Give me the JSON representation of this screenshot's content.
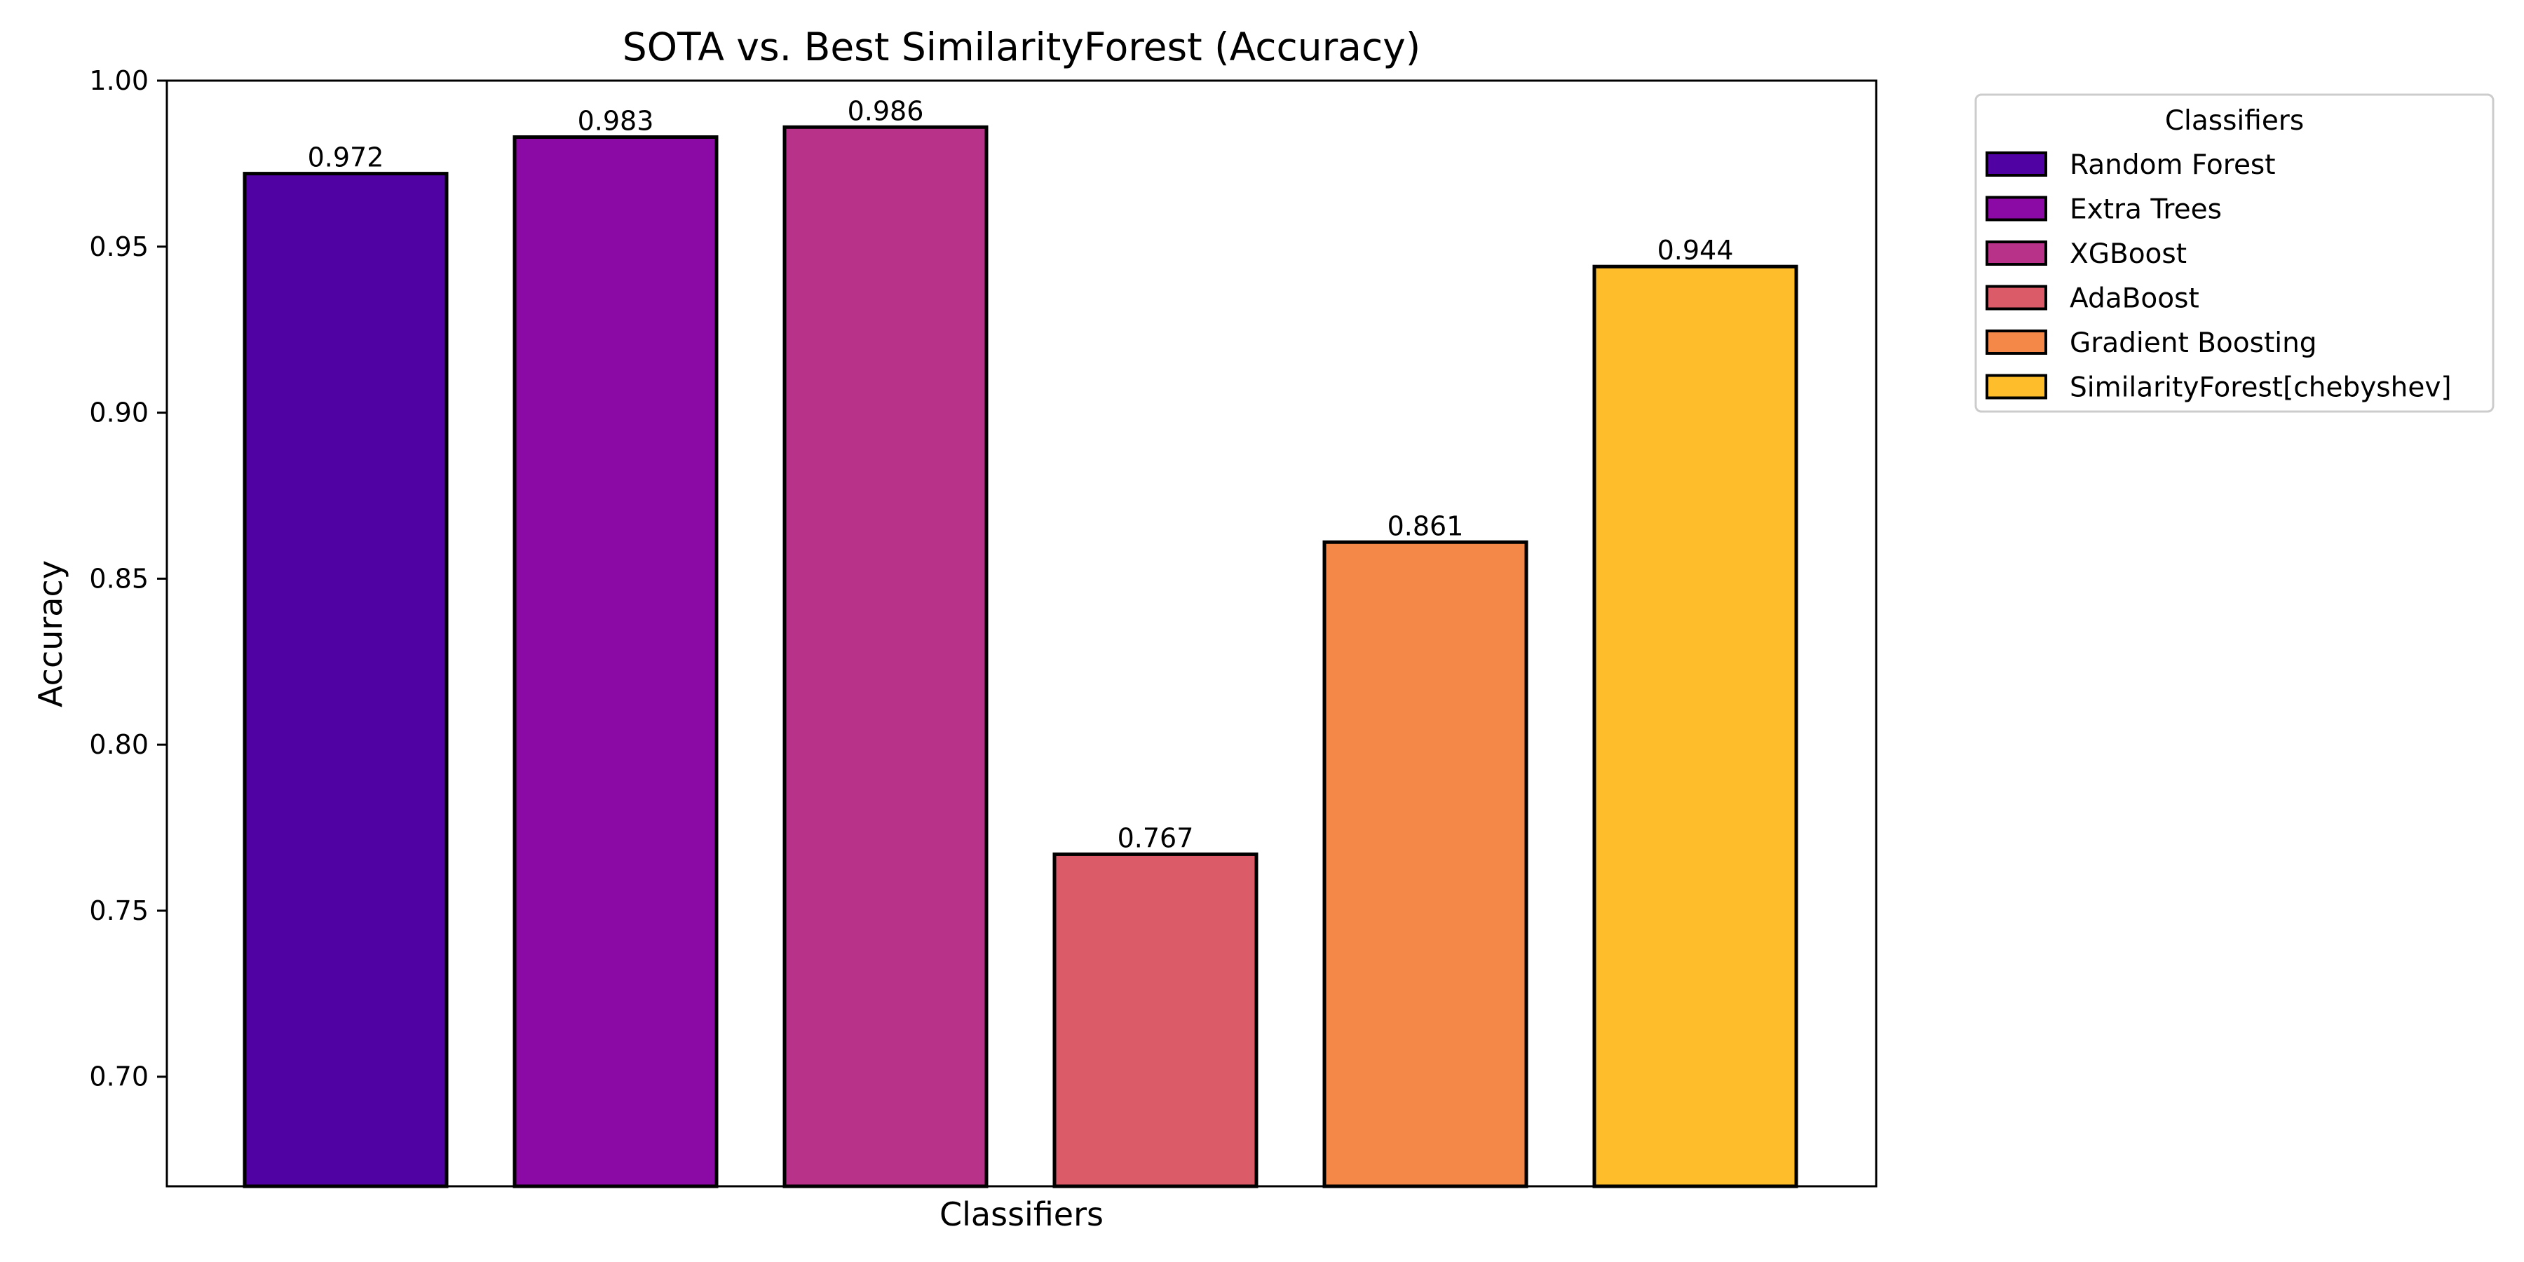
{
  "chart_data": {
    "type": "bar",
    "title": "SOTA vs. Best SimilarityForest (Accuracy)",
    "xlabel": "Classifiers",
    "ylabel": "Accuracy",
    "ylim": [
      0.667,
      1.0
    ],
    "yticks": [
      0.7,
      0.75,
      0.8,
      0.85,
      0.9,
      0.95,
      1.0
    ],
    "ytick_labels": [
      "0.70",
      "0.75",
      "0.80",
      "0.85",
      "0.90",
      "0.95",
      "1.00"
    ],
    "grid": false,
    "categories": [
      "Random Forest",
      "Extra Trees",
      "XGBoost",
      "AdaBoost",
      "Gradient Boosting",
      "SimilarityForest[chebyshev]"
    ],
    "values": [
      0.972,
      0.983,
      0.986,
      0.767,
      0.861,
      0.944
    ],
    "value_labels": [
      "0.972",
      "0.983",
      "0.986",
      "0.767",
      "0.861",
      "0.944"
    ],
    "colors": [
      "#5002a2",
      "#8b0aa5",
      "#b93289",
      "#db5c68",
      "#f48849",
      "#febd2a"
    ],
    "legend": {
      "title": "Classifiers",
      "placement": "outside-top-right",
      "entries": [
        "Random Forest",
        "Extra Trees",
        "XGBoost",
        "AdaBoost",
        "Gradient Boosting",
        "SimilarityForest[chebyshev]"
      ]
    }
  }
}
